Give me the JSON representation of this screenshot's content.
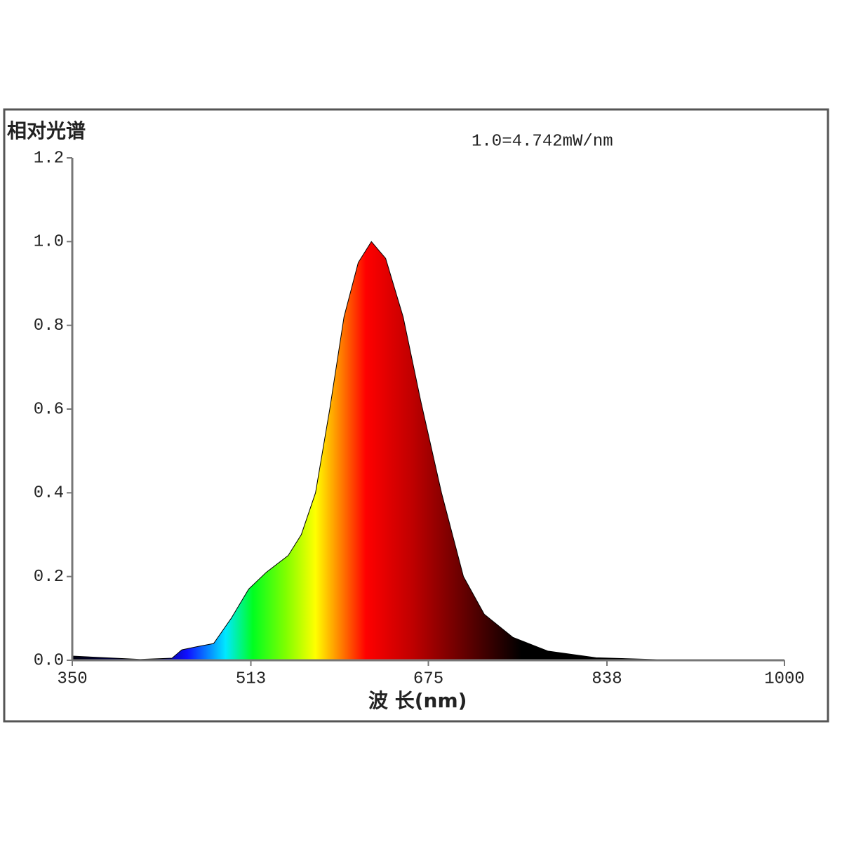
{
  "chart_data": {
    "type": "area",
    "ylabel": "相对光谱",
    "annotation": "1.0=4.742mW/nm",
    "xlabel": "波 长(nm)",
    "x": [
      350,
      412,
      441,
      450,
      463,
      479,
      495,
      511,
      527,
      547,
      559,
      572,
      585,
      598,
      611,
      623,
      636,
      652,
      668,
      687,
      707,
      726,
      752,
      784,
      828,
      892,
      1000
    ],
    "values": [
      0.01,
      0.002,
      0.005,
      0.025,
      0.032,
      0.04,
      0.1,
      0.17,
      0.21,
      0.25,
      0.3,
      0.4,
      0.6,
      0.82,
      0.95,
      1.0,
      0.96,
      0.82,
      0.62,
      0.4,
      0.2,
      0.11,
      0.055,
      0.022,
      0.006,
      0.001,
      0
    ],
    "xlim": [
      350,
      1000
    ],
    "xticks": [
      350,
      513,
      675,
      838,
      1000
    ],
    "ylim": [
      0,
      1.2
    ],
    "yticks": [
      {
        "value": 0,
        "label": "0.0"
      },
      0.2,
      0.4,
      0.6,
      0.8,
      {
        "value": 1,
        "label": "1.0"
      },
      1.2
    ]
  }
}
